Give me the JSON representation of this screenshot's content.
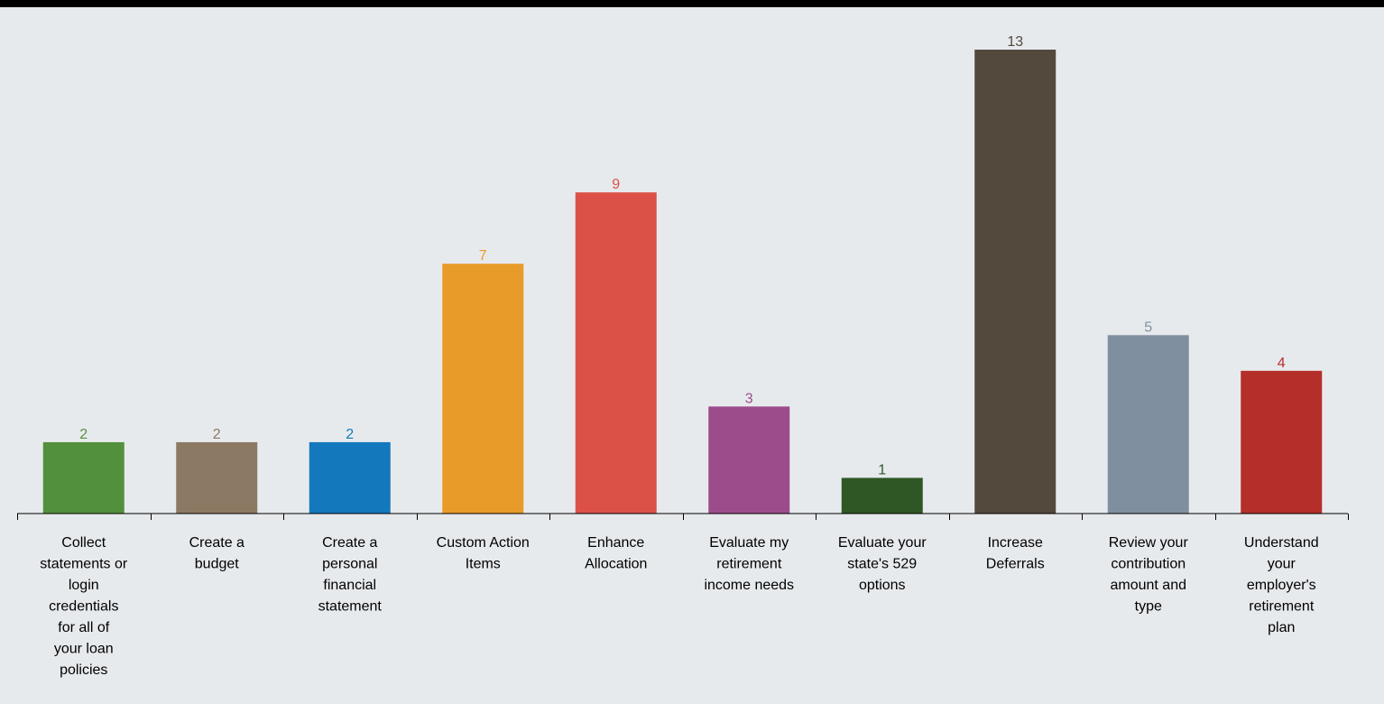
{
  "chart_data": {
    "type": "bar",
    "categories": [
      "Collect statements or login credentials for all of your loan policies",
      "Create a budget",
      "Create a personal financial statement",
      "Custom Action Items",
      "Enhance Allocation",
      "Evaluate my retirement income needs",
      "Evaluate your state's 529 options",
      "Increase Deferrals",
      "Review your contribution amount and type",
      "Understand your employer's retirement plan"
    ],
    "category_lines": [
      [
        "Collect",
        "statements or",
        "login",
        "credentials",
        "for all of",
        "your loan",
        "policies"
      ],
      [
        "Create a",
        "budget"
      ],
      [
        "Create a",
        "personal",
        "financial",
        "statement"
      ],
      [
        "Custom Action",
        "Items"
      ],
      [
        "Enhance",
        "Allocation"
      ],
      [
        "Evaluate my",
        "retirement",
        "income needs"
      ],
      [
        "Evaluate your",
        "state's 529",
        "options"
      ],
      [
        "Increase",
        "Deferrals"
      ],
      [
        "Review your",
        "contribution",
        "amount and",
        "type"
      ],
      [
        "Understand",
        "your",
        "employer's",
        "retirement",
        "plan"
      ]
    ],
    "values": [
      2,
      2,
      2,
      7,
      9,
      3,
      1,
      13,
      5,
      4
    ],
    "value_labels": [
      "2",
      "2",
      "2",
      "7",
      "9",
      "3",
      "1",
      "13",
      "5",
      "4"
    ],
    "colors": [
      "#52903d",
      "#8b7963",
      "#1478bd",
      "#e89b28",
      "#dc5147",
      "#9c4c8b",
      "#2e5725",
      "#53493d",
      "#808f9f",
      "#b52f2a"
    ],
    "label_colors": [
      "#52903d",
      "#8b7963",
      "#1478bd",
      "#e89b28",
      "#dc5147",
      "#9c4c8b",
      "#2e5725",
      "#53493d",
      "#808f9f",
      "#b52f2a"
    ],
    "title": "",
    "xlabel": "",
    "ylabel": "",
    "ylim": [
      0,
      13
    ],
    "grid": false,
    "legend": "none"
  }
}
